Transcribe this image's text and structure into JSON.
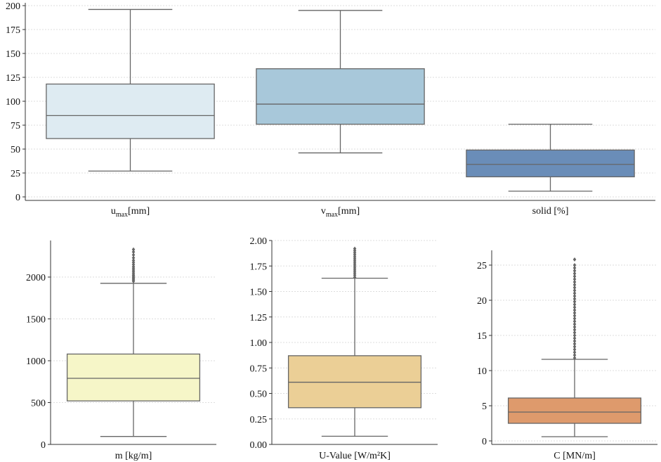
{
  "chart_data": [
    {
      "type": "box",
      "categories": [
        "u_max[mm]",
        "v_max[mm]",
        "solid [%]"
      ],
      "category_labels": [
        {
          "base": "u",
          "sub": "max",
          "rest": "[mm]"
        },
        {
          "base": "v",
          "sub": "max",
          "rest": "[mm]"
        },
        {
          "base": "solid [%]",
          "sub": "",
          "rest": ""
        }
      ],
      "ylim": [
        0,
        200
      ],
      "yticks": [
        0,
        25,
        50,
        75,
        100,
        125,
        150,
        175,
        200
      ],
      "ytick_labels": [
        "0",
        "25",
        "50",
        "75",
        "100",
        "125",
        "150",
        "175",
        "200"
      ],
      "grid": true,
      "boxes": [
        {
          "name": "u_max[mm]",
          "whisker_low": 27,
          "q1": 61,
          "median": 85,
          "q3": 118,
          "whisker_high": 196,
          "color": "#deebf2",
          "outliers": []
        },
        {
          "name": "v_max[mm]",
          "whisker_low": 46,
          "q1": 76,
          "median": 97,
          "q3": 134,
          "whisker_high": 195,
          "color": "#a8c8da",
          "outliers": []
        },
        {
          "name": "solid [%]",
          "whisker_low": 6,
          "q1": 21,
          "median": 34,
          "q3": 49,
          "whisker_high": 76,
          "color": "#6a8db8",
          "outliers": []
        }
      ]
    },
    {
      "type": "box",
      "categories": [
        "m [kg/m]"
      ],
      "xlabel": "m [kg/m]",
      "ylim": [
        0,
        2400
      ],
      "yticks": [
        0,
        500,
        1000,
        1500,
        2000
      ],
      "ytick_labels": [
        "0",
        "500",
        "1000",
        "1500",
        "2000"
      ],
      "grid": true,
      "boxes": [
        {
          "name": "m [kg/m]",
          "whisker_low": 95,
          "q1": 520,
          "median": 790,
          "q3": 1080,
          "whisker_high": 1925,
          "color": "#f6f6c8",
          "outliers": [
            1950,
            1965,
            1980,
            1995,
            2010,
            2025,
            2045,
            2065,
            2085,
            2105,
            2125,
            2150,
            2175,
            2200,
            2230,
            2265,
            2300,
            2330
          ]
        }
      ]
    },
    {
      "type": "box",
      "categories": [
        "U-Value [W/m²K]"
      ],
      "xlabel": "U-Value [W/m²K]",
      "ylim": [
        0,
        2.0
      ],
      "yticks": [
        0,
        0.25,
        0.5,
        0.75,
        1.0,
        1.25,
        1.5,
        1.75,
        2.0
      ],
      "ytick_labels": [
        "0.00",
        "0.25",
        "0.50",
        "0.75",
        "1.00",
        "1.25",
        "1.50",
        "1.75",
        "2.00"
      ],
      "grid": true,
      "boxes": [
        {
          "name": "U-Value [W/m²K]",
          "whisker_low": 0.08,
          "q1": 0.36,
          "median": 0.61,
          "q3": 0.87,
          "whisker_high": 1.63,
          "color": "#ebcf96",
          "outliers": [
            1.64,
            1.66,
            1.68,
            1.7,
            1.72,
            1.74,
            1.76,
            1.78,
            1.8,
            1.82,
            1.84,
            1.86,
            1.88,
            1.9,
            1.92
          ]
        }
      ]
    },
    {
      "type": "box",
      "categories": [
        "C [MN/m]"
      ],
      "xlabel": "C [MN/m]",
      "ylim": [
        -0.5,
        27
      ],
      "yticks": [
        0,
        5,
        10,
        15,
        20,
        25
      ],
      "ytick_labels": [
        "0",
        "5",
        "10",
        "15",
        "20",
        "25"
      ],
      "grid": true,
      "boxes": [
        {
          "name": "C [MN/m]",
          "whisker_low": 0.6,
          "q1": 2.5,
          "median": 4.1,
          "q3": 6.1,
          "whisker_high": 11.6,
          "color": "#de9a6c",
          "outliers": [
            11.8,
            12.2,
            12.6,
            13.0,
            13.4,
            13.8,
            14.2,
            14.6,
            15.0,
            15.4,
            15.8,
            16.2,
            16.6,
            17.0,
            17.4,
            17.8,
            18.2,
            18.6,
            19.0,
            19.4,
            19.8,
            20.2,
            20.6,
            21.0,
            21.4,
            21.8,
            22.2,
            22.6,
            23.0,
            23.4,
            23.8,
            24.2,
            24.6,
            25.0,
            25.8
          ]
        }
      ]
    }
  ]
}
